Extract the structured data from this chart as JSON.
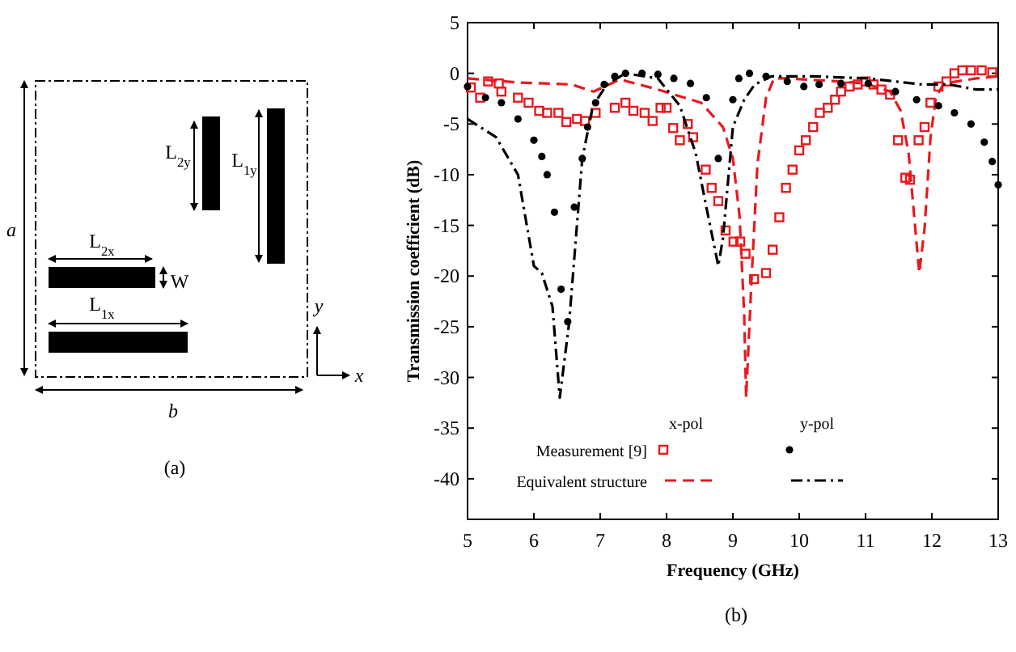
{
  "chart_data": {
    "type": "line",
    "xlabel": "Frequency (GHz)",
    "ylabel": "Transmission coefficient (dB)",
    "xlim": [
      5,
      13
    ],
    "xticks": [
      5,
      6,
      7,
      8,
      9,
      10,
      11,
      12,
      13
    ],
    "ylim": [
      -44,
      5
    ],
    "yticks": [
      5,
      0,
      -5,
      -10,
      -15,
      -20,
      -25,
      -30,
      -35,
      -40
    ],
    "grid": false,
    "legend": "bottom left",
    "annotations": [
      "x-pol",
      "y-pol",
      "(a)",
      "(b)",
      "a",
      "b",
      "L$_{2y}$",
      "L$_{1y}$",
      "L$_{2x}$",
      "W",
      "L$_{1x}$",
      "y",
      "x"
    ],
    "series": [
      {
        "name": "Measurement [9]",
        "type": "scatter",
        "marker": "square",
        "color": "#e8191e",
        "x": [
          5.05,
          5.19,
          5.31,
          5.47,
          5.51,
          5.76,
          5.92,
          6.08,
          6.2,
          6.37,
          6.49,
          6.65,
          6.77,
          6.93,
          7.22,
          7.38,
          7.5,
          7.67,
          7.79,
          7.91,
          8.0,
          8.1,
          8.2,
          8.32,
          8.4,
          8.59,
          8.68,
          8.78,
          8.89,
          9.01,
          9.11,
          9.19,
          9.32,
          9.5,
          9.6,
          9.7,
          9.8,
          9.9,
          10.0,
          10.1,
          10.21,
          10.31,
          10.43,
          10.54,
          10.63,
          10.76,
          10.88,
          11.0,
          11.12,
          11.24,
          11.37,
          11.49,
          11.6,
          11.67,
          11.8,
          11.89,
          11.98,
          12.1,
          12.22,
          12.34,
          12.46,
          12.59,
          12.75,
          12.91
        ],
        "values": [
          -1.4,
          -2.4,
          -0.8,
          -1,
          -1.8,
          -2.4,
          -2.9,
          -3.7,
          -3.9,
          -3.9,
          -4.8,
          -4.5,
          -4.7,
          -3.9,
          -3.4,
          -2.9,
          -3.7,
          -3.9,
          -4.7,
          -3.4,
          -3.4,
          -5.4,
          -6.6,
          -5,
          -6.3,
          -9.5,
          -11.3,
          -12.6,
          -15.5,
          -16.6,
          -16.6,
          -17.8,
          -20.3,
          -19.7,
          -17.4,
          -14.2,
          -11.3,
          -9.5,
          -7.6,
          -6.6,
          -5.3,
          -3.9,
          -3.4,
          -2.6,
          -1.8,
          -1.3,
          -1.1,
          -0.8,
          -1.1,
          -1.6,
          -2.1,
          -6.6,
          -10.3,
          -10.5,
          -6.6,
          -5.3,
          -2.9,
          -1.3,
          -0.8,
          0,
          0.3,
          0.3,
          0.3,
          0.1
        ]
      },
      {
        "name": "Equivalent structure",
        "line_style": "dashed",
        "color": "#e8191e",
        "x": [
          5,
          5.76,
          6.57,
          6.9,
          7.3,
          7.87,
          8.52,
          8.85,
          9.0,
          9.1,
          9.17,
          9.2,
          9.28,
          9.37,
          9.5,
          9.62,
          9.8,
          10.6,
          11.0,
          11.37,
          11.53,
          11.65,
          11.77,
          11.81,
          11.89,
          11.98,
          12.06,
          12.18,
          12.67,
          13
        ],
        "values": [
          -0.5,
          -0.9,
          -1.1,
          -1.8,
          -0.6,
          -1.6,
          -2.9,
          -5.3,
          -8.4,
          -14,
          -23.7,
          -32,
          -20.5,
          -9,
          -2.4,
          -0.5,
          -0.5,
          -0.8,
          -1,
          -1.8,
          -3.7,
          -7.9,
          -16.8,
          -19.7,
          -15.3,
          -6.3,
          -2.4,
          -1,
          -0.5,
          -0.3
        ]
      },
      {
        "type": "scatter",
        "marker": "circle",
        "color": "#000000",
        "x": [
          5,
          5.27,
          5.51,
          5.76,
          6.0,
          6.12,
          6.2,
          6.31,
          6.41,
          6.51,
          6.61,
          6.73,
          6.81,
          6.93,
          7.06,
          7.22,
          7.38,
          7.63,
          7.87,
          8.11,
          8.36,
          8.6,
          8.78,
          9.0,
          9.09,
          9.25,
          9.5,
          9.82,
          10.07,
          10.3,
          10.63,
          11.04,
          11.45,
          11.77,
          12.1,
          12.34,
          12.59,
          12.79,
          12.91,
          13
        ],
        "values": [
          -1.3,
          -2.4,
          -2.9,
          -4.5,
          -6.6,
          -8.2,
          -10,
          -13.7,
          -21.3,
          -24.5,
          -13.2,
          -8.4,
          -5.3,
          -2.9,
          -1.1,
          -0.3,
          0,
          0,
          -0.1,
          -0.5,
          -1,
          -2.4,
          -8.4,
          -2.6,
          -0.5,
          0,
          -0.3,
          -0.8,
          -1.3,
          -1.1,
          -1,
          -1,
          -1.8,
          -2.6,
          -3.2,
          -3.9,
          -5,
          -6.8,
          -8.7,
          -11
        ]
      },
      {
        "line_style": "dashdot",
        "color": "#000000",
        "x": [
          5,
          5.43,
          5.76,
          6.0,
          6.12,
          6.28,
          6.39,
          6.53,
          6.73,
          6.89,
          7.1,
          7.38,
          7.87,
          8.2,
          8.44,
          8.6,
          8.78,
          8.85,
          9.0,
          9.17,
          9.33,
          9.58,
          10.23,
          11.04,
          11.85,
          12.26,
          12.67,
          13
        ],
        "values": [
          -4.5,
          -6.3,
          -10,
          -19,
          -19.7,
          -23,
          -32,
          -24.7,
          -8.4,
          -3.2,
          -1.1,
          0,
          -0.5,
          -3.2,
          -7.9,
          -13.2,
          -19,
          -16.3,
          -5.3,
          -2.6,
          -1.1,
          -0.3,
          -0.3,
          -0.5,
          -1.1,
          -1.1,
          -1.6,
          -1.6
        ]
      }
    ]
  }
}
